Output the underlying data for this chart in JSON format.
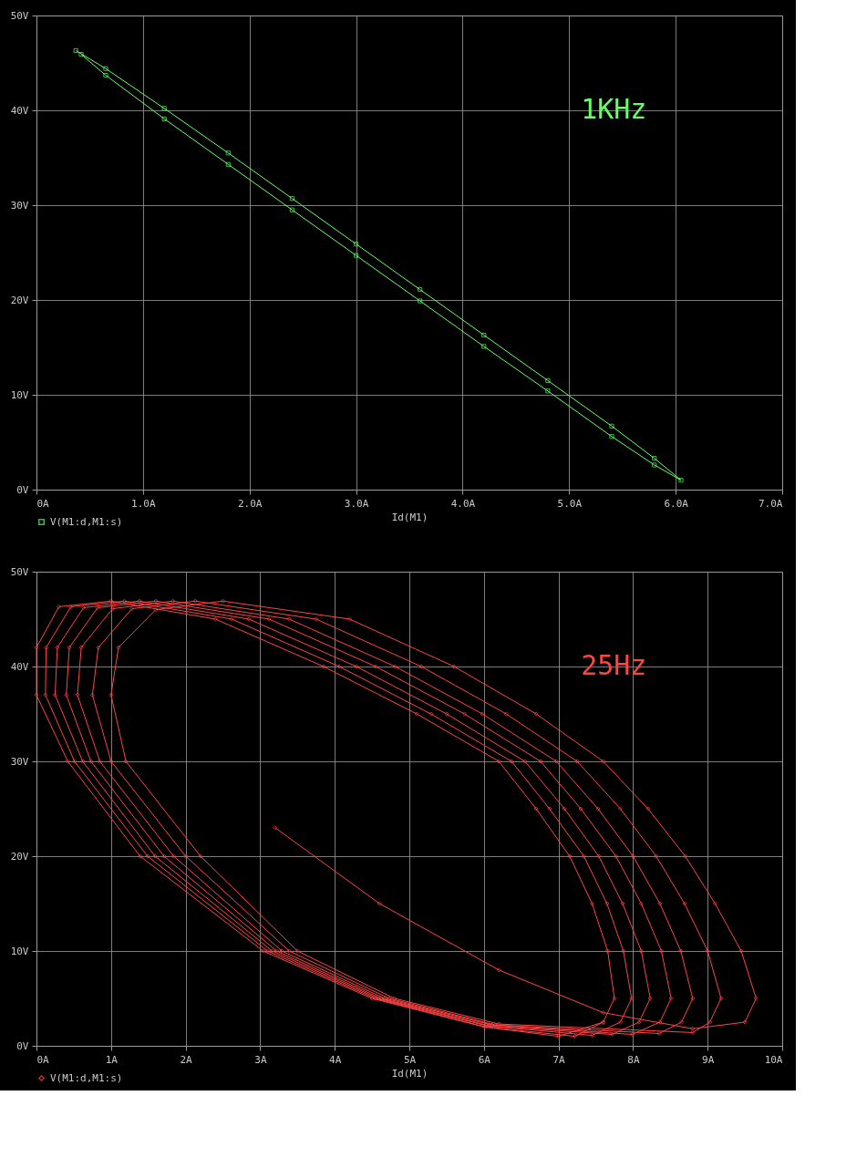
{
  "chart_data": [
    {
      "type": "line",
      "xlabel": "Id(M1)",
      "annotations": [
        "1KHz"
      ],
      "legend": "bottom left",
      "grid": true,
      "marker": "square",
      "line_style": "solid",
      "xlim": [
        0,
        7
      ],
      "ylim": [
        0,
        50
      ],
      "xticks": [
        {
          "value": 0,
          "label": "0A"
        },
        {
          "value": 1,
          "label": "1.0A"
        },
        {
          "value": 2,
          "label": "2.0A"
        },
        {
          "value": 3,
          "label": "3.0A"
        },
        {
          "value": 4,
          "label": "4.0A"
        },
        {
          "value": 5,
          "label": "5.0A"
        },
        {
          "value": 6,
          "label": "6.0A"
        },
        {
          "value": 7,
          "label": "7.0A"
        }
      ],
      "yticks": [
        {
          "value": 0,
          "label": "0V"
        },
        {
          "value": 10,
          "label": "10V"
        },
        {
          "value": 20,
          "label": "20V"
        },
        {
          "value": 30,
          "label": "30V"
        },
        {
          "value": 40,
          "label": "40V"
        },
        {
          "value": 50,
          "label": "50V"
        }
      ],
      "series": [
        {
          "name": "V(M1:d,M1:s)",
          "color": "#66ff66",
          "x": [
            0.37,
            0.65,
            1.2,
            1.8,
            2.4,
            3.0,
            3.6,
            4.2,
            4.8,
            5.4,
            5.8,
            6.05,
            5.8,
            5.4,
            4.8,
            4.2,
            3.6,
            3.0,
            2.4,
            1.8,
            1.2,
            0.65,
            0.42
          ],
          "values": [
            46.3,
            44.4,
            40.2,
            35.5,
            30.7,
            25.9,
            21.1,
            16.3,
            11.5,
            6.7,
            3.3,
            1.0,
            2.6,
            5.6,
            10.4,
            15.1,
            19.9,
            24.7,
            29.5,
            34.3,
            39.1,
            43.7,
            45.9
          ]
        }
      ]
    },
    {
      "type": "line",
      "xlabel": "Id(M1)",
      "annotations": [
        "25Hz"
      ],
      "legend": "bottom left",
      "grid": true,
      "marker": "diamond",
      "line_style": "solid",
      "xlim": [
        0,
        10
      ],
      "ylim": [
        0,
        50
      ],
      "xticks": [
        {
          "value": 0,
          "label": "0A"
        },
        {
          "value": 1,
          "label": "1A"
        },
        {
          "value": 2,
          "label": "2A"
        },
        {
          "value": 3,
          "label": "3A"
        },
        {
          "value": 4,
          "label": "4A"
        },
        {
          "value": 5,
          "label": "5A"
        },
        {
          "value": 6,
          "label": "6A"
        },
        {
          "value": 7,
          "label": "7A"
        },
        {
          "value": 8,
          "label": "8A"
        },
        {
          "value": 9,
          "label": "9A"
        },
        {
          "value": 10,
          "label": "10A"
        }
      ],
      "yticks": [
        {
          "value": 0,
          "label": "0V"
        },
        {
          "value": 10,
          "label": "10V"
        },
        {
          "value": 20,
          "label": "20V"
        },
        {
          "value": 30,
          "label": "30V"
        },
        {
          "value": 40,
          "label": "40V"
        },
        {
          "value": 50,
          "label": "50V"
        }
      ],
      "series": [
        {
          "name": "V(M1:d,M1:s)",
          "color": "#ff4444",
          "x": [
            3.2,
            4.6,
            6.2,
            7.6,
            8.8,
            9.5,
            9.65,
            9.45,
            9.1,
            8.7,
            8.2,
            7.6,
            6.7,
            5.6,
            4.2,
            2.5,
            1.6,
            1.1,
            1.0,
            1.2,
            2.2,
            3.5,
            4.8,
            6.2,
            8.8,
            9.03,
            9.18,
            9.0,
            8.69,
            8.31,
            7.83,
            7.25,
            6.3,
            5.16,
            3.75,
            2.13,
            1.28,
            0.83,
            0.75,
            1.0,
            2.0,
            3.39,
            4.73,
            6.15,
            8.35,
            8.65,
            8.8,
            8.64,
            8.36,
            8.0,
            7.53,
            6.97,
            5.98,
            4.81,
            3.39,
            1.83,
            1.02,
            0.6,
            0.55,
            0.85,
            1.84,
            3.29,
            4.67,
            6.11,
            7.99,
            8.36,
            8.51,
            8.38,
            8.11,
            7.77,
            7.3,
            6.76,
            5.74,
            4.55,
            3.12,
            1.6,
            0.82,
            0.44,
            0.4,
            0.73,
            1.71,
            3.22,
            4.62,
            6.08,
            7.72,
            8.08,
            8.23,
            8.11,
            7.86,
            7.54,
            7.08,
            6.55,
            5.5,
            4.29,
            2.85,
            1.38,
            0.63,
            0.28,
            0.25,
            0.62,
            1.59,
            3.16,
            4.58,
            6.05,
            7.45,
            7.83,
            7.98,
            7.87,
            7.65,
            7.34,
            6.88,
            6.37,
            5.29,
            4.06,
            2.62,
            1.18,
            0.46,
            0.13,
            0.12,
            0.51,
            1.49,
            3.1,
            4.54,
            6.02,
            7.22,
            7.6,
            7.75,
            7.66,
            7.45,
            7.15,
            6.7,
            6.2,
            5.1,
            3.85,
            2.4,
            1.0,
            0.3,
            0.0,
            0.0,
            0.42,
            1.39,
            3.04,
            4.5,
            6.0,
            7.0,
            7.6
          ],
          "values": [
            23,
            15,
            8,
            3.5,
            1.8,
            2.5,
            5,
            10,
            15,
            20,
            25,
            30,
            35,
            40,
            45,
            46.9,
            46,
            42,
            37,
            30,
            20,
            10,
            5,
            2.3,
            1.4,
            2.5,
            5,
            10,
            15,
            20,
            25,
            30,
            35,
            40,
            45,
            46.9,
            46.1,
            42,
            37,
            30,
            20,
            10,
            5,
            2.2,
            1.3,
            2.5,
            5,
            10,
            15,
            20,
            25,
            30,
            35,
            40,
            45,
            46.9,
            46.1,
            42,
            37,
            30,
            20,
            10,
            5,
            2.2,
            1.2,
            2.5,
            5,
            10,
            15,
            20,
            25,
            30,
            35,
            40,
            45,
            46.9,
            46.2,
            42,
            37,
            30,
            20,
            10,
            5,
            2.1,
            1.2,
            2.5,
            5,
            10,
            15,
            20,
            25,
            30,
            35,
            40,
            45,
            46.9,
            46.2,
            42,
            37,
            30,
            20,
            10,
            5,
            2.1,
            1.1,
            2.5,
            5,
            10,
            15,
            20,
            25,
            30,
            35,
            40,
            45,
            46.9,
            46.3,
            42,
            37,
            30,
            20,
            10,
            5,
            2.0,
            1.0,
            2.5,
            5,
            10,
            15,
            20,
            25,
            30,
            35,
            40,
            45,
            46.9,
            46.3,
            42,
            37,
            30,
            20,
            10,
            5,
            2.0,
            1.0,
            2.5
          ]
        }
      ]
    }
  ]
}
